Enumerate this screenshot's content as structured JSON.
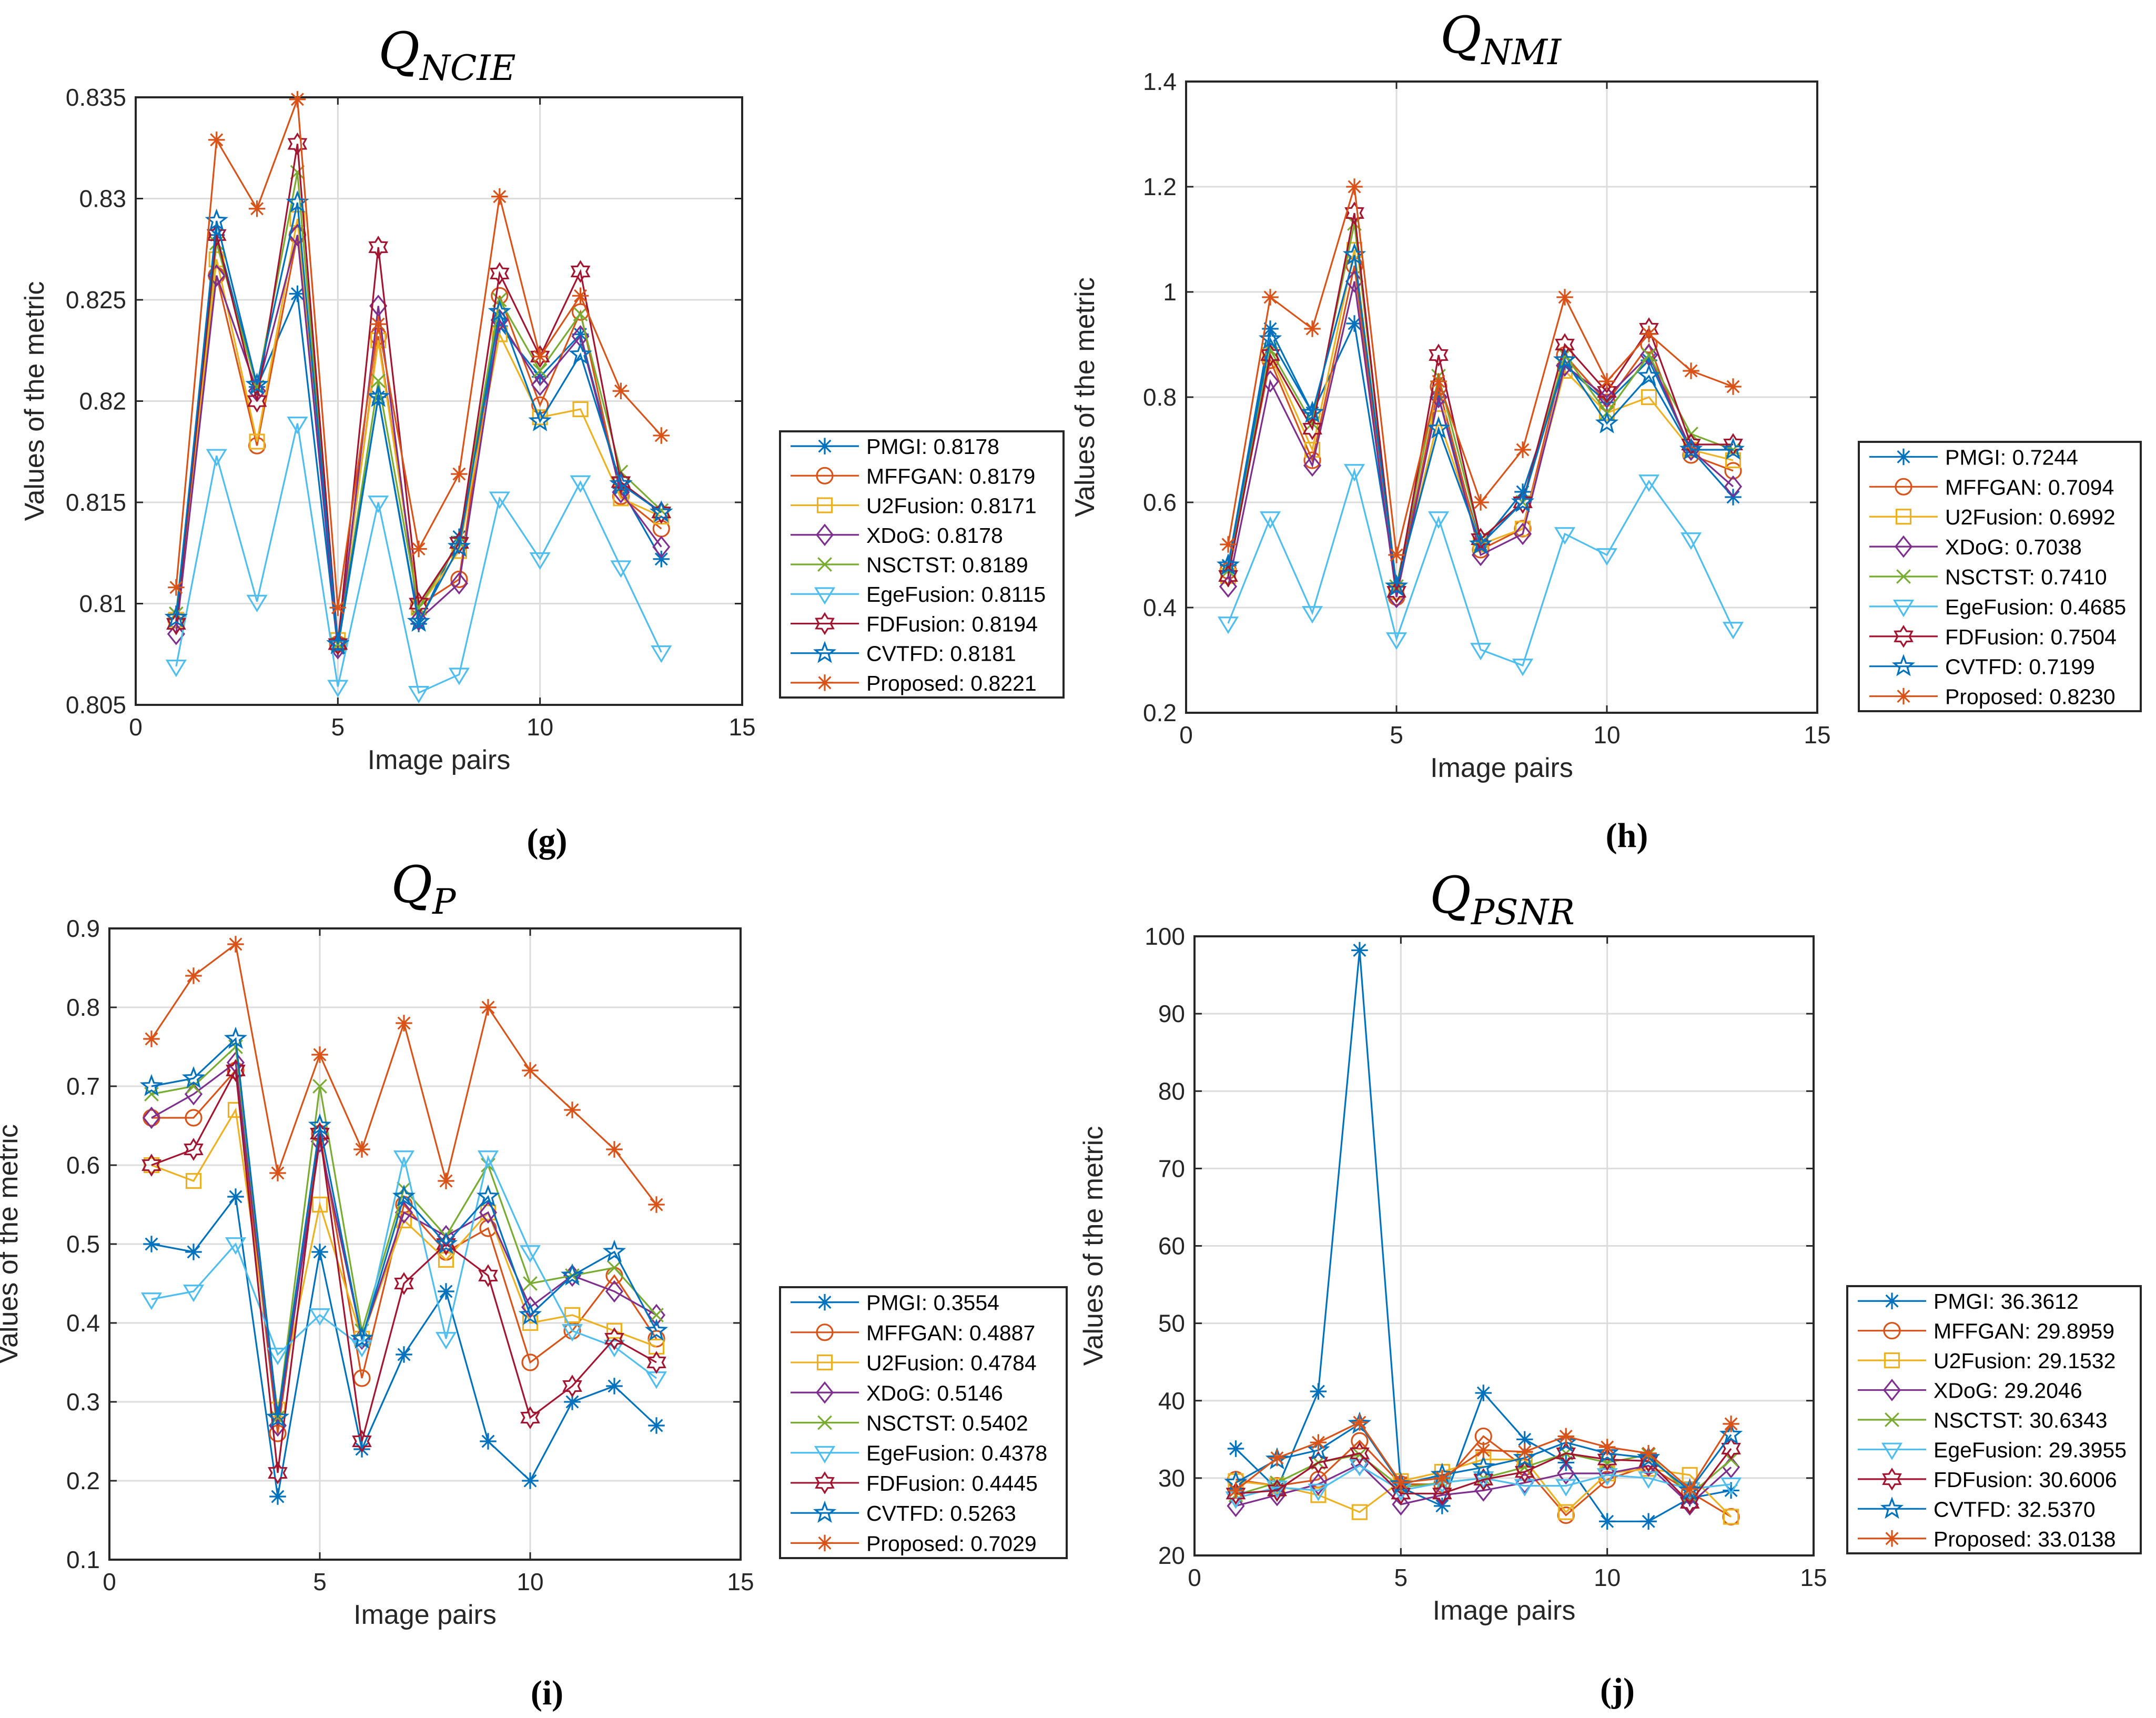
{
  "chart_data": [
    {
      "id": "g",
      "type": "line",
      "caption": "(g)",
      "title_main": "Q",
      "title_sub": "NCIE",
      "xlabel": "Image pairs",
      "ylabel": "Values of the metric",
      "xlim": [
        0,
        15
      ],
      "ylim": [
        0.805,
        0.835
      ],
      "xticks": [
        0,
        5,
        10,
        15
      ],
      "xtick_labels": [
        "0",
        "5",
        "10",
        "15"
      ],
      "yticks": [
        0.805,
        0.81,
        0.815,
        0.82,
        0.825,
        0.83,
        0.835
      ],
      "ytick_labels": [
        "0.805",
        "0.81",
        "0.815",
        "0.82",
        "0.825",
        "0.83",
        "0.835"
      ],
      "x": [
        1,
        2,
        3,
        4,
        5,
        6,
        7,
        8,
        9,
        10,
        11,
        12,
        13
      ],
      "series": [
        {
          "name": "PMGI",
          "legend": "PMGI: 0.8178",
          "values": [
            0.8095,
            0.8282,
            0.8207,
            0.8253,
            0.8078,
            0.8202,
            0.809,
            0.8133,
            0.8237,
            0.8212,
            0.8233,
            0.8157,
            0.8122
          ]
        },
        {
          "name": "MFFGAN",
          "legend": "MFFGAN: 0.8179",
          "values": [
            0.8092,
            0.8262,
            0.8178,
            0.8282,
            0.808,
            0.8232,
            0.8099,
            0.8112,
            0.8252,
            0.8198,
            0.8244,
            0.8153,
            0.8137
          ]
        },
        {
          "name": "U2Fusion",
          "legend": "U2Fusion: 0.8171",
          "values": [
            0.8092,
            0.827,
            0.818,
            0.829,
            0.8082,
            0.823,
            0.8098,
            0.8126,
            0.8233,
            0.8192,
            0.8196,
            0.8152,
            0.8143
          ]
        },
        {
          "name": "XDoG",
          "legend": "XDoG: 0.8178",
          "values": [
            0.8085,
            0.8262,
            0.8205,
            0.8282,
            0.8078,
            0.8247,
            0.8092,
            0.811,
            0.824,
            0.8208,
            0.8232,
            0.8155,
            0.8128
          ]
        },
        {
          "name": "NSCTST",
          "legend": "NSCTST: 0.8189",
          "values": [
            0.8095,
            0.8278,
            0.8207,
            0.8313,
            0.808,
            0.821,
            0.8098,
            0.813,
            0.825,
            0.8215,
            0.8243,
            0.8165,
            0.8146
          ]
        },
        {
          "name": "EgeFusion",
          "legend": "EgeFusion: 0.8115",
          "values": [
            0.8069,
            0.8173,
            0.8101,
            0.8189,
            0.8059,
            0.815,
            0.8056,
            0.8065,
            0.8152,
            0.8122,
            0.816,
            0.8118,
            0.8076
          ]
        },
        {
          "name": "FDFusion",
          "legend": "FDFusion: 0.8194",
          "values": [
            0.809,
            0.8282,
            0.82,
            0.8327,
            0.808,
            0.8276,
            0.81,
            0.813,
            0.8263,
            0.8222,
            0.8264,
            0.816,
            0.8145
          ]
        },
        {
          "name": "CVTFD",
          "legend": "CVTFD: 0.8181",
          "values": [
            0.8093,
            0.8289,
            0.8208,
            0.8298,
            0.808,
            0.8202,
            0.8091,
            0.8128,
            0.8244,
            0.819,
            0.8223,
            0.8159,
            0.8145
          ]
        },
        {
          "name": "Proposed",
          "legend": "Proposed: 0.8221",
          "values": [
            0.8108,
            0.8329,
            0.8295,
            0.8349,
            0.8098,
            0.8238,
            0.8127,
            0.8164,
            0.8301,
            0.8222,
            0.8252,
            0.8205,
            0.8183
          ]
        }
      ]
    },
    {
      "id": "h",
      "type": "line",
      "caption": "(h)",
      "title_main": "Q",
      "title_sub": "NMI",
      "xlabel": "Image pairs",
      "ylabel": "Values of the metric",
      "xlim": [
        0,
        15
      ],
      "ylim": [
        0.2,
        1.4
      ],
      "xticks": [
        0,
        5,
        10,
        15
      ],
      "xtick_labels": [
        "0",
        "5",
        "10",
        "15"
      ],
      "yticks": [
        0.2,
        0.4,
        0.6,
        0.8,
        1.0,
        1.2,
        1.4
      ],
      "ytick_labels": [
        "0.2",
        "0.4",
        "0.6",
        "0.8",
        "1",
        "1.2",
        "1.4"
      ],
      "x": [
        1,
        2,
        3,
        4,
        5,
        6,
        7,
        8,
        9,
        10,
        11,
        12,
        13
      ],
      "series": [
        {
          "name": "PMGI",
          "legend": "PMGI: 0.7244",
          "values": [
            0.48,
            0.93,
            0.77,
            0.94,
            0.44,
            0.8,
            0.52,
            0.62,
            0.86,
            0.79,
            0.87,
            0.7,
            0.61
          ]
        },
        {
          "name": "MFFGAN",
          "legend": "MFFGAN: 0.7094",
          "values": [
            0.47,
            0.87,
            0.68,
            1.05,
            0.42,
            0.82,
            0.51,
            0.55,
            0.88,
            0.79,
            0.9,
            0.69,
            0.66
          ]
        },
        {
          "name": "U2Fusion",
          "legend": "U2Fusion: 0.6992",
          "values": [
            0.46,
            0.88,
            0.7,
            1.08,
            0.43,
            0.76,
            0.52,
            0.55,
            0.85,
            0.77,
            0.8,
            0.7,
            0.68
          ]
        },
        {
          "name": "XDoG",
          "legend": "XDoG: 0.7038",
          "values": [
            0.44,
            0.83,
            0.67,
            1.02,
            0.42,
            0.8,
            0.5,
            0.54,
            0.86,
            0.8,
            0.88,
            0.7,
            0.63
          ]
        },
        {
          "name": "NSCTST",
          "legend": "NSCTST: 0.7410",
          "values": [
            0.47,
            0.89,
            0.75,
            1.13,
            0.44,
            0.84,
            0.53,
            0.6,
            0.88,
            0.77,
            0.88,
            0.73,
            0.7
          ]
        },
        {
          "name": "EgeFusion",
          "legend": "EgeFusion: 0.4685",
          "values": [
            0.37,
            0.57,
            0.39,
            0.66,
            0.34,
            0.57,
            0.32,
            0.29,
            0.54,
            0.5,
            0.64,
            0.53,
            0.36
          ]
        },
        {
          "name": "FDFusion",
          "legend": "FDFusion: 0.7504",
          "values": [
            0.46,
            0.88,
            0.74,
            1.15,
            0.43,
            0.88,
            0.53,
            0.6,
            0.9,
            0.81,
            0.93,
            0.71,
            0.71
          ]
        },
        {
          "name": "CVTFD",
          "legend": "CVTFD: 0.7199",
          "values": [
            0.48,
            0.91,
            0.77,
            1.07,
            0.44,
            0.74,
            0.52,
            0.6,
            0.87,
            0.75,
            0.84,
            0.7,
            0.7
          ]
        },
        {
          "name": "Proposed",
          "legend": "Proposed: 0.8230",
          "values": [
            0.52,
            0.99,
            0.93,
            1.2,
            0.5,
            0.83,
            0.6,
            0.7,
            0.99,
            0.83,
            0.92,
            0.85,
            0.82
          ]
        }
      ]
    },
    {
      "id": "i",
      "type": "line",
      "caption": "(i)",
      "title_main": "Q",
      "title_sub": "P",
      "xlabel": "Image pairs",
      "ylabel": "Values of the metric",
      "xlim": [
        0,
        15
      ],
      "ylim": [
        0.1,
        0.9
      ],
      "xticks": [
        0,
        5,
        10,
        15
      ],
      "xtick_labels": [
        "0",
        "5",
        "10",
        "15"
      ],
      "yticks": [
        0.1,
        0.2,
        0.3,
        0.4,
        0.5,
        0.6,
        0.7,
        0.8,
        0.9
      ],
      "ytick_labels": [
        "0.1",
        "0.2",
        "0.3",
        "0.4",
        "0.5",
        "0.6",
        "0.7",
        "0.8",
        "0.9"
      ],
      "x": [
        1,
        2,
        3,
        4,
        5,
        6,
        7,
        8,
        9,
        10,
        11,
        12,
        13
      ],
      "series": [
        {
          "name": "PMGI",
          "legend": "PMGI: 0.3554",
          "values": [
            0.5,
            0.49,
            0.56,
            0.18,
            0.49,
            0.24,
            0.36,
            0.44,
            0.25,
            0.2,
            0.3,
            0.32,
            0.27
          ]
        },
        {
          "name": "MFFGAN",
          "legend": "MFFGAN: 0.4887",
          "values": [
            0.66,
            0.66,
            0.72,
            0.26,
            0.64,
            0.33,
            0.55,
            0.49,
            0.52,
            0.35,
            0.39,
            0.46,
            0.38
          ]
        },
        {
          "name": "U2Fusion",
          "legend": "U2Fusion: 0.4784",
          "values": [
            0.6,
            0.58,
            0.67,
            0.29,
            0.55,
            0.38,
            0.53,
            0.48,
            0.54,
            0.4,
            0.41,
            0.39,
            0.37
          ]
        },
        {
          "name": "XDoG",
          "legend": "XDoG: 0.5146",
          "values": [
            0.66,
            0.69,
            0.73,
            0.27,
            0.63,
            0.38,
            0.54,
            0.51,
            0.54,
            0.42,
            0.46,
            0.44,
            0.41
          ]
        },
        {
          "name": "NSCTST",
          "legend": "NSCTST: 0.5402",
          "values": [
            0.69,
            0.7,
            0.75,
            0.28,
            0.7,
            0.39,
            0.57,
            0.51,
            0.6,
            0.45,
            0.46,
            0.47,
            0.41
          ]
        },
        {
          "name": "EgeFusion",
          "legend": "EgeFusion: 0.4378",
          "values": [
            0.43,
            0.44,
            0.5,
            0.36,
            0.41,
            0.37,
            0.61,
            0.38,
            0.61,
            0.49,
            0.39,
            0.37,
            0.33
          ]
        },
        {
          "name": "FDFusion",
          "legend": "FDFusion: 0.4445",
          "values": [
            0.6,
            0.62,
            0.72,
            0.21,
            0.64,
            0.25,
            0.45,
            0.5,
            0.46,
            0.28,
            0.32,
            0.38,
            0.35
          ]
        },
        {
          "name": "CVTFD",
          "legend": "CVTFD: 0.5263",
          "values": [
            0.7,
            0.71,
            0.76,
            0.28,
            0.65,
            0.38,
            0.56,
            0.5,
            0.56,
            0.41,
            0.46,
            0.49,
            0.39
          ]
        },
        {
          "name": "Proposed",
          "legend": "Proposed: 0.7029",
          "values": [
            0.76,
            0.84,
            0.88,
            0.59,
            0.74,
            0.62,
            0.78,
            0.58,
            0.8,
            0.72,
            0.67,
            0.62,
            0.55
          ]
        }
      ]
    },
    {
      "id": "j",
      "type": "line",
      "caption": "(j)",
      "title_main": "Q",
      "title_sub": "PSNR",
      "xlabel": "Image pairs",
      "ylabel": "Values of the metric",
      "xlim": [
        0,
        15
      ],
      "ylim": [
        20,
        100
      ],
      "xticks": [
        0,
        5,
        10,
        15
      ],
      "xtick_labels": [
        "0",
        "5",
        "10",
        "15"
      ],
      "yticks": [
        20,
        30,
        40,
        50,
        60,
        70,
        80,
        90,
        100
      ],
      "ytick_labels": [
        "20",
        "30",
        "40",
        "50",
        "60",
        "70",
        "80",
        "90",
        "100"
      ],
      "x": [
        1,
        2,
        3,
        4,
        5,
        6,
        7,
        8,
        9,
        10,
        11,
        12,
        13
      ],
      "series": [
        {
          "name": "PMGI",
          "legend": "PMGI: 36.3612",
          "values": [
            33.8,
            28.6,
            41.2,
            98.2,
            28.8,
            26.4,
            41.0,
            35.0,
            32.0,
            24.4,
            24.4,
            27.4,
            28.4
          ]
        },
        {
          "name": "MFFGAN",
          "legend": "MFFGAN: 29.8959",
          "values": [
            29.8,
            29.0,
            29.8,
            34.8,
            29.2,
            29.2,
            35.4,
            31.4,
            25.2,
            29.8,
            31.6,
            28.2,
            25.0
          ]
        },
        {
          "name": "U2Fusion",
          "legend": "U2Fusion: 29.1532",
          "values": [
            29.6,
            29.0,
            27.8,
            25.6,
            29.6,
            30.8,
            32.4,
            32.4,
            25.6,
            30.6,
            31.2,
            30.4,
            25.0
          ]
        },
        {
          "name": "XDoG",
          "legend": "XDoG: 29.2046",
          "values": [
            26.4,
            27.8,
            29.2,
            31.8,
            26.6,
            27.8,
            28.4,
            29.4,
            30.6,
            30.6,
            31.6,
            26.6,
            31.4
          ]
        },
        {
          "name": "NSCTST",
          "legend": "NSCTST: 30.6343",
          "values": [
            27.8,
            29.4,
            32.0,
            33.0,
            28.8,
            29.4,
            30.0,
            31.4,
            33.2,
            32.0,
            33.0,
            27.8,
            32.4
          ]
        },
        {
          "name": "EgeFusion",
          "legend": "EgeFusion: 29.3955",
          "values": [
            27.4,
            28.8,
            28.4,
            31.6,
            28.4,
            29.4,
            30.0,
            29.0,
            29.0,
            30.4,
            30.0,
            28.6,
            29.2
          ]
        },
        {
          "name": "FDFusion",
          "legend": "FDFusion: 30.6006",
          "values": [
            28.0,
            28.4,
            32.0,
            33.2,
            28.0,
            28.0,
            29.8,
            30.8,
            33.2,
            32.4,
            32.2,
            26.8,
            33.8
          ]
        },
        {
          "name": "CVTFD",
          "legend": "CVTFD: 32.5370",
          "values": [
            29.4,
            32.4,
            33.6,
            37.0,
            29.2,
            30.4,
            31.4,
            32.6,
            34.6,
            33.2,
            32.6,
            28.4,
            35.6
          ]
        },
        {
          "name": "Proposed",
          "legend": "Proposed: 33.0138",
          "values": [
            28.4,
            32.6,
            34.6,
            37.2,
            29.4,
            30.0,
            33.6,
            33.4,
            35.4,
            34.0,
            33.2,
            28.6,
            37.0
          ]
        }
      ]
    }
  ],
  "series_style": {
    "PMGI": {
      "color": "#0072BD",
      "marker": "asterisk"
    },
    "MFFGAN": {
      "color": "#D95319",
      "marker": "circle"
    },
    "U2Fusion": {
      "color": "#EDB120",
      "marker": "square"
    },
    "XDoG": {
      "color": "#7E2F8E",
      "marker": "diamond"
    },
    "NSCTST": {
      "color": "#77AC30",
      "marker": "cross"
    },
    "EgeFusion": {
      "color": "#4DBEEE",
      "marker": "triangle-down"
    },
    "FDFusion": {
      "color": "#A2142F",
      "marker": "hexagram"
    },
    "CVTFD": {
      "color": "#0072BD",
      "marker": "pentagram"
    },
    "Proposed": {
      "color": "#D95319",
      "marker": "asterisk"
    }
  }
}
